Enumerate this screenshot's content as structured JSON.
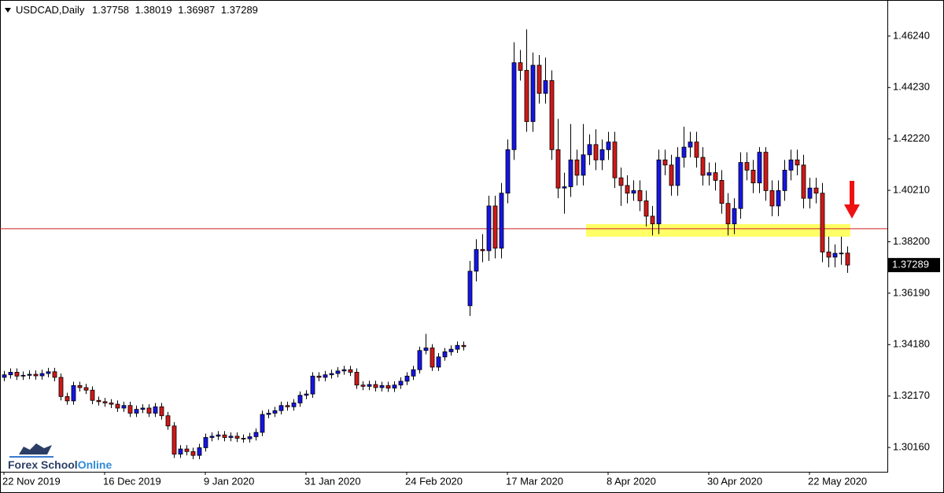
{
  "chart_data": {
    "type": "candlestick",
    "title": "USDCAD,Daily",
    "categories": [
      "22 Nov 2019",
      null,
      null,
      null,
      null,
      null,
      null,
      null,
      null,
      null,
      null,
      null,
      null,
      null,
      null,
      null,
      "16 Dec 2019",
      null,
      null,
      null,
      null,
      null,
      null,
      null,
      null,
      null,
      null,
      null,
      null,
      null,
      null,
      null,
      "9 Jan 2020",
      null,
      null,
      null,
      null,
      null,
      null,
      null,
      null,
      null,
      null,
      null,
      null,
      null,
      null,
      null,
      "31 Jan 2020",
      null,
      null,
      null,
      null,
      null,
      null,
      null,
      null,
      null,
      null,
      null,
      null,
      null,
      null,
      null,
      "24 Feb 2020",
      null,
      null,
      null,
      null,
      null,
      null,
      null,
      null,
      null,
      null,
      null,
      null,
      null,
      null,
      null,
      "17 Mar 2020",
      null,
      null,
      null,
      null,
      null,
      null,
      null,
      null,
      null,
      null,
      null,
      null,
      null,
      null,
      null,
      "8 Apr 2020",
      null,
      null,
      null,
      null,
      null,
      null,
      null,
      null,
      null,
      null,
      null,
      null,
      null,
      null,
      null,
      "30 Apr 2020",
      null,
      null,
      null,
      null,
      null,
      null,
      null,
      null,
      null,
      null,
      null,
      null,
      null,
      null,
      null,
      "22 May 2020",
      null,
      null,
      null,
      null,
      null,
      null
    ],
    "open": [
      1.329,
      1.33,
      1.331,
      1.3295,
      1.3298,
      1.3302,
      1.3296,
      1.3305,
      1.3312,
      1.329,
      1.3215,
      1.3198,
      1.3258,
      1.325,
      1.324,
      1.32,
      1.3195,
      1.319,
      1.3185,
      1.317,
      1.318,
      1.315,
      1.3165,
      1.317,
      1.315,
      1.3175,
      1.314,
      1.31,
      1.299,
      1.301,
      1.3,
      1.2985,
      1.3015,
      1.3055,
      1.306,
      1.3065,
      1.3055,
      1.306,
      1.3052,
      1.305,
      1.3058,
      1.3075,
      1.3145,
      1.315,
      1.316,
      1.318,
      1.3175,
      1.319,
      1.322,
      1.3225,
      1.3295,
      1.329,
      1.33,
      1.3305,
      1.3315,
      1.332,
      1.331,
      1.326,
      1.3255,
      1.3262,
      1.325,
      1.3258,
      1.3248,
      1.326,
      1.3275,
      1.3295,
      1.332,
      1.3395,
      1.3405,
      1.333,
      1.337,
      1.339,
      1.34,
      1.3415,
      1.357,
      1.3705,
      1.379,
      1.3785,
      1.396,
      1.3795,
      1.401,
      1.418,
      1.452,
      1.449,
      1.429,
      1.451,
      1.44,
      1.445,
      1.418,
      1.403,
      1.4035,
      1.414,
      1.408,
      1.416,
      1.42,
      1.414,
      1.418,
      1.421,
      1.407,
      1.404,
      1.401,
      1.402,
      1.398,
      1.392,
      1.389,
      1.414,
      1.412,
      1.404,
      1.415,
      1.419,
      1.421,
      1.415,
      1.408,
      1.409,
      1.406,
      1.397,
      1.389,
      1.395,
      1.413,
      1.41,
      1.405,
      1.417,
      1.402,
      1.396,
      1.402,
      1.41,
      1.414,
      1.412,
      1.399,
      1.403,
      1.401,
      1.378,
      1.376,
      1.3775,
      1.37758
    ],
    "high": [
      1.3315,
      1.3325,
      1.3325,
      1.3313,
      1.3317,
      1.3317,
      1.332,
      1.3327,
      1.3327,
      1.3305,
      1.323,
      1.3273,
      1.3273,
      1.3265,
      1.3255,
      1.3215,
      1.321,
      1.3205,
      1.32,
      1.3195,
      1.3195,
      1.318,
      1.3185,
      1.3185,
      1.319,
      1.319,
      1.3155,
      1.3115,
      1.3025,
      1.3025,
      1.3015,
      1.303,
      1.307,
      1.3075,
      1.308,
      1.308,
      1.3075,
      1.3075,
      1.3067,
      1.3073,
      1.309,
      1.316,
      1.3165,
      1.3175,
      1.3195,
      1.3195,
      1.3205,
      1.3235,
      1.324,
      1.331,
      1.331,
      1.3315,
      1.332,
      1.333,
      1.3335,
      1.3335,
      1.3325,
      1.3275,
      1.3277,
      1.3277,
      1.3273,
      1.3273,
      1.3275,
      1.329,
      1.331,
      1.3335,
      1.341,
      1.346,
      1.342,
      1.3385,
      1.3405,
      1.3415,
      1.343,
      1.343,
      1.3745,
      1.383,
      1.385,
      1.4,
      1.4,
      1.405,
      1.422,
      1.46,
      1.457,
      1.465,
      1.456,
      1.455,
      1.454,
      1.449,
      1.43,
      1.409,
      1.428,
      1.418,
      1.428,
      1.424,
      1.426,
      1.422,
      1.425,
      1.425,
      1.411,
      1.408,
      1.406,
      1.406,
      1.402,
      1.396,
      1.418,
      1.418,
      1.416,
      1.419,
      1.427,
      1.425,
      1.425,
      1.419,
      1.413,
      1.413,
      1.41,
      1.401,
      1.399,
      1.417,
      1.417,
      1.414,
      1.419,
      1.419,
      1.406,
      1.406,
      1.414,
      1.418,
      1.418,
      1.416,
      1.407,
      1.407,
      1.405,
      1.384,
      1.381,
      1.384,
      1.38019
    ],
    "low": [
      1.3275,
      1.3285,
      1.328,
      1.328,
      1.3283,
      1.3281,
      1.3281,
      1.329,
      1.3275,
      1.32,
      1.3183,
      1.3183,
      1.3235,
      1.3225,
      1.3185,
      1.318,
      1.3175,
      1.317,
      1.3155,
      1.3155,
      1.3135,
      1.3135,
      1.315,
      1.3135,
      1.3135,
      1.3125,
      1.3085,
      1.2975,
      1.2975,
      1.2985,
      1.297,
      1.297,
      1.3,
      1.304,
      1.3045,
      1.304,
      1.304,
      1.3037,
      1.3035,
      1.3035,
      1.3043,
      1.306,
      1.313,
      1.3135,
      1.3145,
      1.316,
      1.316,
      1.3175,
      1.3205,
      1.321,
      1.3275,
      1.3275,
      1.3285,
      1.329,
      1.33,
      1.3295,
      1.3245,
      1.324,
      1.324,
      1.3235,
      1.3235,
      1.3233,
      1.3233,
      1.3245,
      1.326,
      1.328,
      1.3305,
      1.338,
      1.3315,
      1.3315,
      1.3355,
      1.3375,
      1.3385,
      1.3395,
      1.353,
      1.3665,
      1.374,
      1.3745,
      1.3755,
      1.3755,
      1.397,
      1.414,
      1.445,
      1.425,
      1.425,
      1.436,
      1.436,
      1.414,
      1.399,
      1.393,
      1.3995,
      1.404,
      1.404,
      1.412,
      1.41,
      1.41,
      1.414,
      1.403,
      1.396,
      1.397,
      1.398,
      1.394,
      1.388,
      1.3845,
      1.385,
      1.408,
      1.4,
      1.4,
      1.411,
      1.415,
      1.411,
      1.404,
      1.404,
      1.402,
      1.393,
      1.3845,
      1.385,
      1.391,
      1.406,
      1.401,
      1.401,
      1.398,
      1.392,
      1.392,
      1.398,
      1.406,
      1.408,
      1.395,
      1.395,
      1.397,
      1.374,
      1.372,
      1.372,
      1.373,
      1.36987
    ],
    "close": [
      1.33,
      1.331,
      1.3295,
      1.3298,
      1.3302,
      1.3296,
      1.3305,
      1.3312,
      1.329,
      1.3215,
      1.3198,
      1.3258,
      1.325,
      1.324,
      1.32,
      1.3195,
      1.319,
      1.3185,
      1.317,
      1.318,
      1.315,
      1.3165,
      1.317,
      1.315,
      1.3175,
      1.314,
      1.31,
      1.299,
      1.301,
      1.3,
      1.2985,
      1.3015,
      1.3055,
      1.306,
      1.3065,
      1.3055,
      1.306,
      1.3052,
      1.305,
      1.3058,
      1.3075,
      1.3145,
      1.315,
      1.316,
      1.318,
      1.3175,
      1.319,
      1.322,
      1.3225,
      1.3295,
      1.329,
      1.33,
      1.3305,
      1.3315,
      1.332,
      1.331,
      1.326,
      1.3255,
      1.3262,
      1.325,
      1.3258,
      1.3248,
      1.326,
      1.3275,
      1.3295,
      1.332,
      1.3395,
      1.3405,
      1.333,
      1.337,
      1.339,
      1.34,
      1.3415,
      1.341,
      1.3705,
      1.379,
      1.3785,
      1.396,
      1.3795,
      1.401,
      1.418,
      1.452,
      1.449,
      1.429,
      1.451,
      1.44,
      1.445,
      1.418,
      1.403,
      1.4035,
      1.414,
      1.408,
      1.416,
      1.42,
      1.414,
      1.418,
      1.421,
      1.407,
      1.404,
      1.401,
      1.402,
      1.398,
      1.392,
      1.389,
      1.414,
      1.412,
      1.404,
      1.415,
      1.419,
      1.421,
      1.415,
      1.408,
      1.409,
      1.406,
      1.397,
      1.389,
      1.395,
      1.413,
      1.41,
      1.405,
      1.417,
      1.402,
      1.396,
      1.402,
      1.41,
      1.414,
      1.412,
      1.399,
      1.403,
      1.401,
      1.378,
      1.376,
      1.3775,
      1.37758,
      1.37289
    ],
    "up_color": "#1515e6",
    "down_color": "#d01818",
    "ylim": [
      1.2921,
      1.4765
    ],
    "yticks": [
      {
        "value": 1.3016,
        "label": "1.30160"
      },
      {
        "value": 1.3217,
        "label": "1.32170"
      },
      {
        "value": 1.3418,
        "label": "1.34180"
      },
      {
        "value": 1.3619,
        "label": "1.36190"
      },
      {
        "value": 1.382,
        "label": "1.38200"
      },
      {
        "value": 1.4021,
        "label": "1.40210"
      },
      {
        "value": 1.4222,
        "label": "1.42220"
      },
      {
        "value": 1.4423,
        "label": "1.44230"
      },
      {
        "value": 1.4624,
        "label": "1.46240"
      }
    ],
    "hline": 1.3871,
    "zone": {
      "low": 1.384,
      "high": 1.3889,
      "from": 93,
      "to": 135
    },
    "logo": {
      "first": "Forex School",
      "second": "Online"
    }
  }
}
